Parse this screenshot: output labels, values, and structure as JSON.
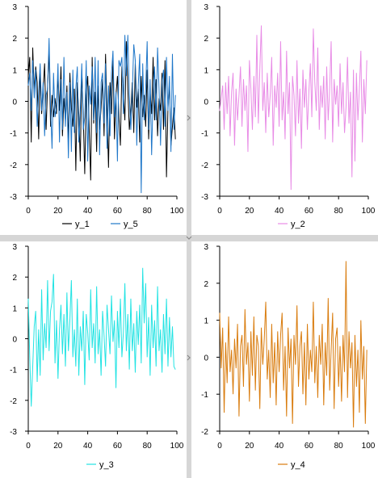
{
  "chart_data": [
    {
      "type": "line",
      "ylim": [
        -3,
        3
      ],
      "xlim": [
        0,
        100
      ],
      "xticks": [
        0,
        20,
        40,
        60,
        80,
        100
      ],
      "yticks": [
        -3,
        -2,
        -1,
        0,
        1,
        2,
        3
      ],
      "legend_position": "bottom",
      "series": [
        {
          "name": "y_1",
          "color": "#000000",
          "values": [
            0.8,
            1.4,
            -1.3,
            1.7,
            0.3,
            1.1,
            0.6,
            -1.2,
            0.9,
            -0.4,
            0.4,
            1.2,
            -0.9,
            0.5,
            1.6,
            -0.8,
            0.2,
            -0.5,
            0.1,
            -0.4,
            0.8,
            -0.3,
            1.1,
            -1.1,
            0.1,
            -0.6,
            0.5,
            -1.3,
            0.9,
            -0.2,
            -0.8,
            0.4,
            -2.2,
            0.6,
            -0.4,
            -1.9,
            1.0,
            -0.5,
            -2.3,
            0.2,
            0.8,
            -0.9,
            -2.5,
            1.4,
            -0.7,
            0.3,
            -1.6,
            0.5,
            -0.9,
            -0.2,
            0.7,
            -1.1,
            1.5,
            -0.3,
            -2.1,
            0.6,
            -0.4,
            1.3,
            -1.2,
            0.2,
            0.8,
            -0.5,
            -1.4,
            1.1,
            0.2,
            -0.6,
            1.9,
            0.4,
            -0.9,
            -0.3,
            0.6,
            -1.0,
            1.2,
            -0.2,
            0.4,
            -1.3,
            0.8,
            -0.5,
            0.2,
            -0.8,
            1.0,
            -1.2,
            0.3,
            -0.4,
            1.4,
            -0.6,
            0.7,
            -1.1,
            0.1,
            -0.3,
            0.9,
            -0.9,
            1.3,
            -2.4,
            -0.2,
            0.6,
            -1.4,
            -0.8,
            -0.2,
            -1.2
          ]
        },
        {
          "name": "y_5",
          "color": "#1f77c9",
          "values": [
            0.5,
            0.9,
            -0.3,
            1.3,
            0.1,
            1.0,
            -0.8,
            0.3,
            1.2,
            -0.3,
            0.6,
            -1.1,
            0.2,
            0.4,
            2.0,
            -0.2,
            -1.5,
            0.9,
            -0.5,
            -0.2,
            1.2,
            -1.3,
            0.7,
            -0.9,
            1.4,
            -0.8,
            0.3,
            -1.8,
            0.6,
            -1.6,
            1.0,
            -1.0,
            0.4,
            1.1,
            -1.3,
            -0.3,
            1.2,
            -0.9,
            -0.5,
            1.3,
            -1.9,
            0.5,
            -0.1,
            1.1,
            -0.6,
            1.4,
            -1.0,
            1.3,
            -1.7,
            0.6,
            0.9,
            -0.7,
            1.2,
            -1.5,
            0.5,
            -1.1,
            0.9,
            1.6,
            -0.5,
            0.3,
            -1.9,
            1.3,
            1.1,
            1.4,
            -0.4,
            2.1,
            0.8,
            2.1,
            0.2,
            -0.9,
            0.3,
            1.8,
            1.3,
            -1.4,
            0.5,
            1.5,
            -2.9,
            1.2,
            -0.6,
            0.4,
            1.9,
            -0.9,
            0.7,
            -1.7,
            0.2,
            1.1,
            -0.6,
            1.7,
            0.4,
            -1.4,
            0.6,
            1.0,
            -0.8,
            1.4,
            -0.3,
            0.8,
            -1.6,
            1.5,
            -0.9,
            0.2
          ]
        }
      ]
    },
    {
      "type": "line",
      "ylim": [
        -3,
        3
      ],
      "xlim": [
        0,
        100
      ],
      "xticks": [
        0,
        20,
        40,
        60,
        80,
        100
      ],
      "yticks": [
        -3,
        -2,
        -1,
        0,
        1,
        2,
        3
      ],
      "legend_position": "bottom",
      "series": [
        {
          "name": "y_2",
          "color": "#e88ce6",
          "values": [
            -0.3,
            0.1,
            0.5,
            -0.9,
            0.6,
            -0.4,
            0.8,
            -1.1,
            0.3,
            0.9,
            -1.4,
            0.4,
            -0.6,
            0.2,
            1.1,
            -0.8,
            0.7,
            -0.3,
            0.5,
            -1.6,
            1.3,
            0.4,
            -0.9,
            0.8,
            -0.5,
            2.1,
            -0.7,
            1.0,
            2.4,
            -0.3,
            0.6,
            -1.0,
            0.9,
            -0.5,
            0.2,
            1.4,
            -1.4,
            0.5,
            -0.2,
            0.9,
            -0.8,
            1.9,
            -0.6,
            0.3,
            -1.2,
            1.6,
            -0.4,
            0.6,
            -2.8,
            0.8,
            0.2,
            -1.1,
            1.3,
            -0.7,
            0.4,
            -1.5,
            1.0,
            -0.2,
            0.7,
            -0.9,
            0.3,
            1.2,
            -0.5,
            2.3,
            0.6,
            -0.3,
            1.7,
            -0.9,
            0.5,
            -0.2,
            0.8,
            -1.2,
            1.1,
            -0.6,
            0.4,
            1.9,
            -1.3,
            0.7,
            -0.1,
            0.5,
            -0.8,
            1.2,
            -0.4,
            0.6,
            -1.0,
            -0.2,
            1.4,
            -0.7,
            0.3,
            -2.4,
            1.0,
            -1.9,
            0.9,
            -0.6,
            0.4,
            1.6,
            -1.3,
            0.7,
            -0.4,
            1.3
          ]
        }
      ]
    },
    {
      "type": "line",
      "ylim": [
        -3,
        3
      ],
      "xlim": [
        0,
        100
      ],
      "xticks": [
        0,
        20,
        40,
        60,
        80,
        100
      ],
      "yticks": [
        -3,
        -2,
        -1,
        0,
        1,
        2,
        3
      ],
      "legend_position": "bottom",
      "series": [
        {
          "name": "y_3",
          "color": "#22e3e3",
          "values": [
            1.3,
            -0.6,
            -2.2,
            -0.9,
            0.4,
            0.9,
            -1.4,
            0.3,
            -1.2,
            1.6,
            -0.7,
            0.5,
            -0.3,
            1.9,
            -0.4,
            0.9,
            1.2,
            2.1,
            -0.8,
            0.6,
            -1.3,
            0.3,
            1.1,
            -0.5,
            0.8,
            -0.9,
            1.5,
            -0.4,
            0.6,
            1.9,
            -0.6,
            0.3,
            -0.9,
            1.3,
            -1.2,
            0.4,
            -0.4,
            0.9,
            -1.5,
            0.8,
            0.2,
            -0.7,
            1.6,
            -0.3,
            0.5,
            -0.8,
            1.7,
            -0.5,
            0.3,
            -1.2,
            0.9,
            0.1,
            -0.9,
            1.1,
            0.3,
            -0.5,
            1.4,
            -0.1,
            0.6,
            -1.6,
            0.9,
            -0.3,
            1.3,
            -0.6,
            0.2,
            1.8,
            -0.4,
            0.8,
            -1.0,
            1.3,
            -0.4,
            0.5,
            -1.1,
            0.9,
            -0.2,
            1.1,
            -0.8,
            2.3,
            0.5,
            1.8,
            -0.6,
            0.7,
            -1.2,
            1.1,
            -0.3,
            0.6,
            -0.9,
            1.7,
            -0.4,
            0.3,
            -1.1,
            0.8,
            -0.5,
            1.3,
            -0.9,
            0.7,
            -0.6,
            0.4,
            -0.9,
            -1.0
          ]
        }
      ]
    },
    {
      "type": "line",
      "ylim": [
        -2,
        3
      ],
      "xlim": [
        0,
        100
      ],
      "xticks": [
        0,
        20,
        40,
        60,
        80,
        100
      ],
      "yticks": [
        -2,
        -1,
        0,
        1,
        2,
        3
      ],
      "legend_position": "bottom",
      "series": [
        {
          "name": "y_4",
          "color": "#d97c0e",
          "values": [
            1.2,
            -0.3,
            0.8,
            -1.5,
            0.4,
            -0.7,
            1.1,
            -0.4,
            0.2,
            -1.0,
            0.5,
            -0.3,
            0.9,
            -1.6,
            0.3,
            0.6,
            -0.8,
            1.3,
            -0.2,
            0.4,
            -1.2,
            0.7,
            -0.5,
            1.1,
            -0.9,
            0.6,
            0.3,
            -1.4,
            0.8,
            -0.2,
            0.5,
            1.5,
            -0.6,
            0.2,
            -1.1,
            0.9,
            -0.7,
            0.4,
            -1.3,
            0.7,
            -0.4,
            0.6,
            1.2,
            -0.9,
            0.3,
            -1.6,
            0.8,
            -0.3,
            0.5,
            -1.8,
            0.6,
            -0.2,
            1.4,
            -0.8,
            0.3,
            0.7,
            -1.0,
            0.4,
            -1.3,
            0.9,
            -0.6,
            0.2,
            -0.4,
            1.5,
            -0.7,
            0.3,
            -1.1,
            0.6,
            -0.2,
            0.9,
            -1.3,
            0.4,
            -0.5,
            1.6,
            -0.9,
            0.2,
            1.2,
            -1.4,
            0.5,
            0.8,
            -0.8,
            0.3,
            -1.2,
            0.6,
            -0.4,
            2.6,
            -1.1,
            0.7,
            -0.3,
            0.4,
            -1.9,
            0.6,
            -0.8,
            0.2,
            -1.5,
            1.0,
            -0.6,
            0.3,
            -1.8,
            0.2
          ]
        }
      ]
    }
  ]
}
